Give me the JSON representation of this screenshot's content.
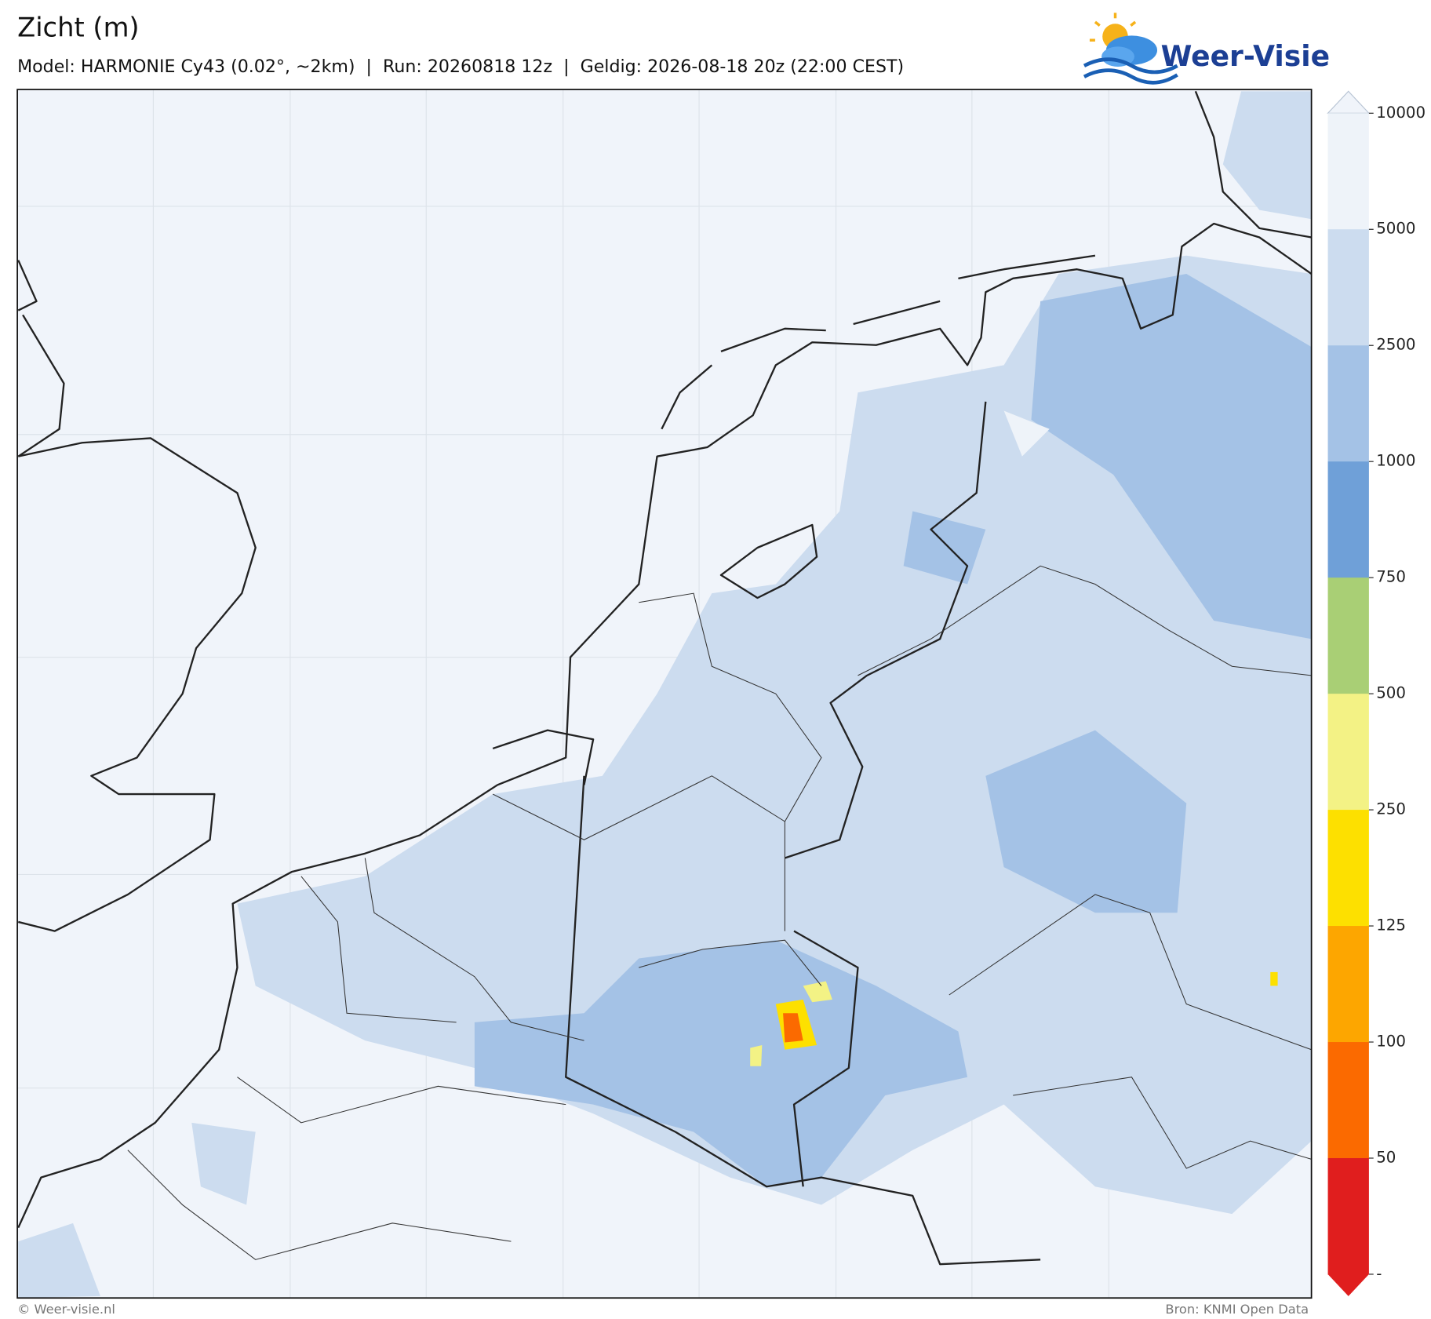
{
  "header": {
    "title": "Zicht (m)",
    "subtitle": "Model: HARMONIE Cy43 (0.02°, ~2km)  |  Run: 20260818 12z  |  Geldig: 2026-08-18 20z (22:00 CEST)"
  },
  "logo": {
    "text": "Weer-Visie"
  },
  "colorbar": {
    "ticks": [
      10000,
      5000,
      2500,
      1000,
      750,
      500,
      250,
      125,
      100,
      50,
      "-"
    ],
    "colors": [
      "#f0f4fa",
      "#eef3f9",
      "#ccdcef",
      "#a4c2e6",
      "#6fa0d8",
      "#a9cf75",
      "#f3f285",
      "#fde000",
      "#fda600",
      "#fb6a00",
      "#e01e1e",
      "#e01e1e"
    ]
  },
  "footer": {
    "left": "© Weer-visie.nl",
    "right": "Bron: KNMI Open Data"
  }
}
